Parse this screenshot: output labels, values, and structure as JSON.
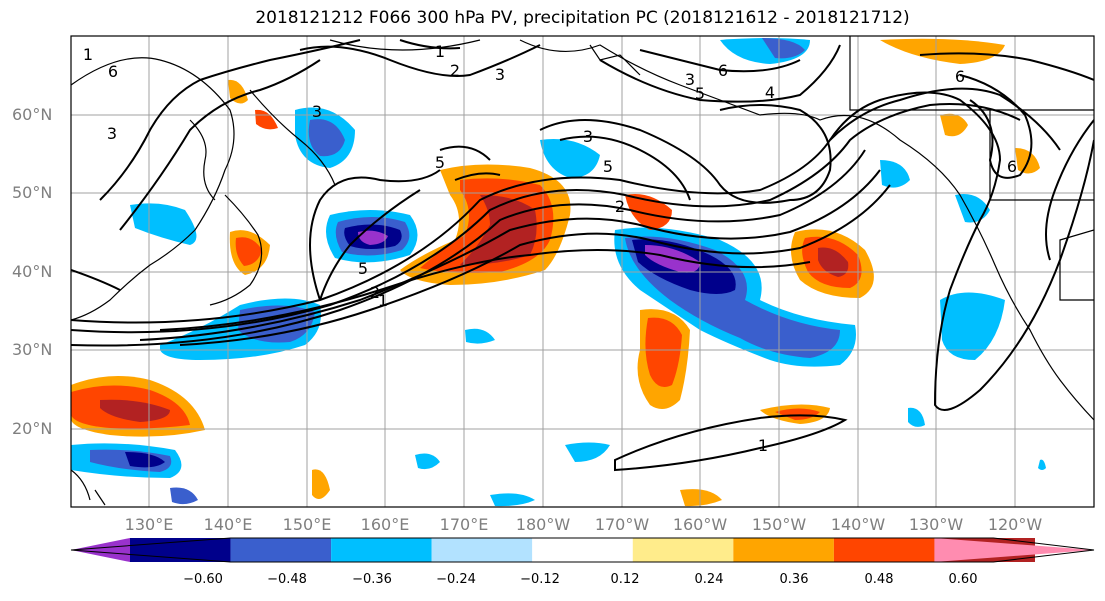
{
  "title": "2018121212 F066 300 hPa PV, precipitation PC (2018121612 - 2018121712)",
  "map": {
    "lat_labels": [
      "60°N",
      "50°N",
      "40°N",
      "30°N",
      "20°N"
    ],
    "lon_labels": [
      "130°E",
      "140°E",
      "150°E",
      "160°E",
      "170°E",
      "180°W",
      "170°W",
      "160°W",
      "150°W",
      "140°W",
      "130°W",
      "120°W"
    ],
    "contour_labels": [
      "1",
      "2",
      "3",
      "4",
      "5",
      "6",
      "3",
      "3",
      "5",
      "2",
      "3",
      "6",
      "3",
      "5",
      "1",
      "2",
      "1",
      "5",
      "6",
      "6",
      "1"
    ],
    "ocean_color": "#ffffff",
    "coastline_color": "#000000",
    "pv_contour_color": "#000000"
  },
  "colorbar": {
    "colors": [
      "#9932cc",
      "#00008b",
      "#3a5fcd",
      "#00bfff",
      "#b2e2ff",
      "#ffffff",
      "#ffec8b",
      "#ffa500",
      "#ff4500",
      "#b22222",
      "#ff8cb0"
    ],
    "tick_labels": [
      "−0.60",
      "−0.48",
      "−0.36",
      "−0.24",
      "−0.12",
      "0.12",
      "0.24",
      "0.36",
      "0.48",
      "0.60"
    ]
  }
}
